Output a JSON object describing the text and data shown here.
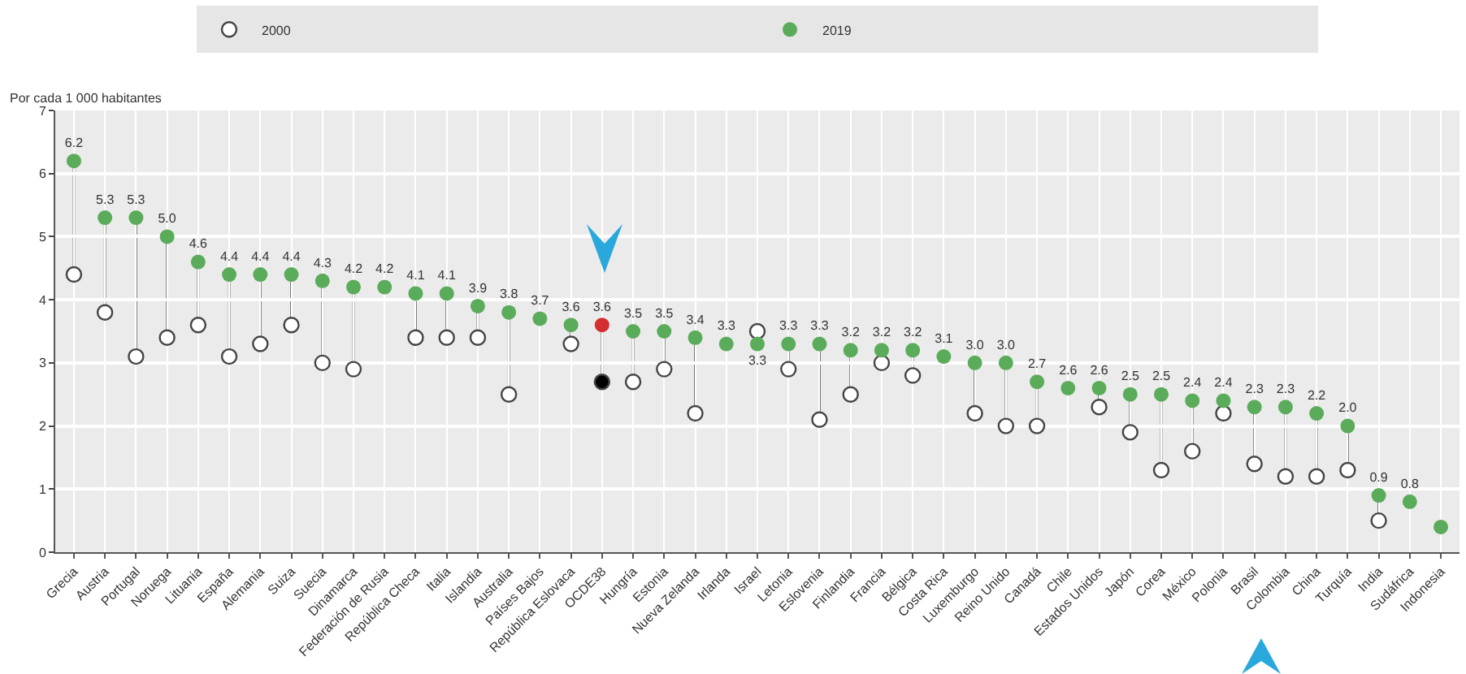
{
  "chart_data": {
    "type": "scatter",
    "ylabel": "Por cada 1 000 habitantes",
    "categories": [
      "Grecia",
      "Austria",
      "Portugal",
      "Noruega",
      "Lituania",
      "España",
      "Alemania",
      "Suiza",
      "Suecia",
      "Dinamarca",
      "Federación de Rusia",
      "República Checa",
      "Italia",
      "Islandia",
      "Australia",
      "Países Bajos",
      "República Eslovaca",
      "OCDE38",
      "Hungría",
      "Estonia",
      "Nueva Zelanda",
      "Irlanda",
      "Israel",
      "Letonia",
      "Eslovenia",
      "Finlandia",
      "Francia",
      "Bélgica",
      "Costa Rica",
      "Luxemburgo",
      "Reino Unido",
      "Canadá",
      "Chile",
      "Estados Unidos",
      "Japón",
      "Corea",
      "México",
      "Polonia",
      "Brasil",
      "Colombia",
      "China",
      "Turquía",
      "India",
      "Sudáfrica",
      "Indonesia"
    ],
    "series": [
      {
        "name": "2000",
        "colors": [
          "#ffffff",
          "#ffffff",
          "#ffffff",
          "#ffffff",
          "#ffffff",
          "#ffffff",
          "#ffffff",
          "#ffffff",
          "#ffffff",
          "#ffffff",
          "#ffffff",
          "#ffffff",
          "#ffffff",
          "#ffffff",
          "#ffffff",
          "#ffffff",
          "#ffffff",
          "#000000",
          "#ffffff",
          "#ffffff",
          "#ffffff",
          "#ffffff",
          "#ffffff",
          "#ffffff",
          "#ffffff",
          "#ffffff",
          "#ffffff",
          "#ffffff",
          "#ffffff",
          "#ffffff",
          "#ffffff",
          "#ffffff",
          "#ffffff",
          "#ffffff",
          "#ffffff",
          "#ffffff",
          "#ffffff",
          "#ffffff",
          "#ffffff",
          "#ffffff",
          "#ffffff",
          "#ffffff",
          "#ffffff",
          "#ffffff",
          "#ffffff"
        ],
        "values": [
          4.4,
          3.8,
          3.1,
          3.4,
          3.6,
          3.1,
          3.3,
          3.6,
          3.0,
          2.9,
          null,
          3.4,
          3.4,
          3.4,
          2.5,
          null,
          3.3,
          2.7,
          2.7,
          2.9,
          2.2,
          null,
          3.5,
          2.9,
          2.1,
          2.5,
          3.0,
          2.8,
          null,
          2.2,
          2.0,
          2.0,
          null,
          2.3,
          1.9,
          1.3,
          1.6,
          2.2,
          1.4,
          1.2,
          1.2,
          1.3,
          0.5,
          null,
          null
        ]
      },
      {
        "name": "2019",
        "colors": [
          "#5aab5a",
          "#5aab5a",
          "#5aab5a",
          "#5aab5a",
          "#5aab5a",
          "#5aab5a",
          "#5aab5a",
          "#5aab5a",
          "#5aab5a",
          "#5aab5a",
          "#5aab5a",
          "#5aab5a",
          "#5aab5a",
          "#5aab5a",
          "#5aab5a",
          "#5aab5a",
          "#5aab5a",
          "#d42f2f",
          "#5aab5a",
          "#5aab5a",
          "#5aab5a",
          "#5aab5a",
          "#5aab5a",
          "#5aab5a",
          "#5aab5a",
          "#5aab5a",
          "#5aab5a",
          "#5aab5a",
          "#5aab5a",
          "#5aab5a",
          "#5aab5a",
          "#5aab5a",
          "#5aab5a",
          "#5aab5a",
          "#5aab5a",
          "#5aab5a",
          "#5aab5a",
          "#5aab5a",
          "#5aab5a",
          "#5aab5a",
          "#5aab5a",
          "#5aab5a",
          "#5aab5a",
          "#5aab5a",
          "#5aab5a"
        ],
        "values": [
          6.2,
          5.3,
          5.3,
          5.0,
          4.6,
          4.4,
          4.4,
          4.4,
          4.3,
          4.2,
          4.2,
          4.1,
          4.1,
          3.9,
          3.8,
          3.7,
          3.6,
          3.6,
          3.5,
          3.5,
          3.4,
          3.3,
          3.3,
          3.3,
          3.3,
          3.2,
          3.2,
          3.2,
          3.1,
          3.0,
          3.0,
          2.7,
          2.6,
          2.6,
          2.5,
          2.5,
          2.4,
          2.4,
          2.3,
          2.3,
          2.2,
          2.0,
          0.9,
          0.8,
          0.4
        ],
        "value_labels": [
          "6.2",
          "5.3",
          "5.3",
          "5.0",
          "4.6",
          "4.4",
          "4.4",
          "4.4",
          "4.3",
          "4.2",
          "4.2",
          "4.1",
          "4.1",
          "3.9",
          "3.8",
          "3.7",
          "3.6",
          "3.6",
          "3.5",
          "3.5",
          "3.4",
          "3.3",
          "3.3",
          "3.3",
          "3.3",
          "3.2",
          "3.2",
          "3.2",
          "3.1",
          "3.0",
          "3.0",
          "2.7",
          "2.6",
          "2.6",
          "2.5",
          "2.5",
          "2.4",
          "2.4",
          "2.3",
          "2.3",
          "2.2",
          "2.0",
          "0.9",
          "0.8",
          null
        ]
      }
    ],
    "ylim": [
      0,
      7
    ],
    "yticks": [
      0,
      1,
      2,
      3,
      4,
      5,
      6,
      7
    ],
    "grid": true,
    "legend": "top",
    "marker": "circle"
  }
}
